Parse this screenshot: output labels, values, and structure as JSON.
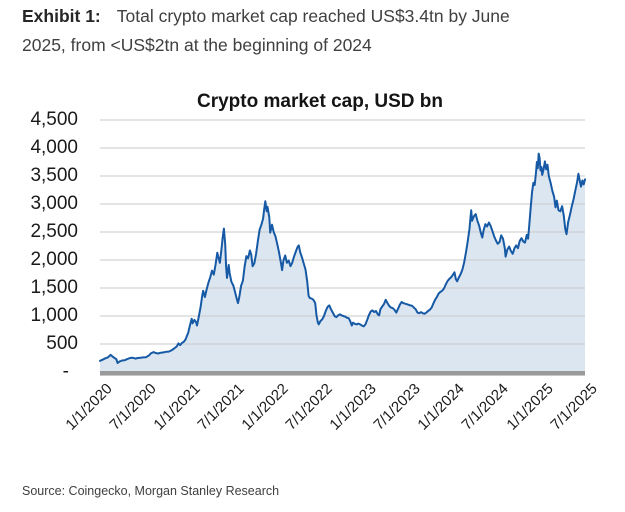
{
  "header": {
    "exhibit_label": "Exhibit 1:",
    "line1": "Total crypto market cap reached US$3.4tn by June",
    "line2": "2025, from <US$2tn at the beginning of 2024"
  },
  "source": "Source: Coingecko, Morgan Stanley Research",
  "chart_data": {
    "type": "area",
    "title": "Crypto market cap, USD bn",
    "xlabel": "",
    "ylabel": "",
    "grid": true,
    "legend": "none",
    "xlim": [
      0,
      5.5
    ],
    "ylim": [
      0,
      4500
    ],
    "x_unit": "years since 1/1/2020",
    "x_ticks": [
      {
        "t": 0.0,
        "label": "1/1/2020"
      },
      {
        "t": 0.5,
        "label": "7/1/2020"
      },
      {
        "t": 1.0,
        "label": "1/1/2021"
      },
      {
        "t": 1.5,
        "label": "7/1/2021"
      },
      {
        "t": 2.0,
        "label": "1/1/2022"
      },
      {
        "t": 2.5,
        "label": "7/1/2022"
      },
      {
        "t": 3.0,
        "label": "1/1/2023"
      },
      {
        "t": 3.5,
        "label": "7/1/2023"
      },
      {
        "t": 4.0,
        "label": "1/1/2024"
      },
      {
        "t": 4.5,
        "label": "7/1/2024"
      },
      {
        "t": 5.0,
        "label": "1/1/2025"
      },
      {
        "t": 5.5,
        "label": "7/1/2025"
      }
    ],
    "y_ticks": [
      {
        "value": 0,
        "label": "-"
      },
      {
        "value": 500,
        "label": "500"
      },
      {
        "value": 1000,
        "label": "1,000"
      },
      {
        "value": 1500,
        "label": "1,500"
      },
      {
        "value": 2000,
        "label": "2,000"
      },
      {
        "value": 2500,
        "label": "2,500"
      },
      {
        "value": 3000,
        "label": "3,000"
      },
      {
        "value": 3500,
        "label": "3,500"
      },
      {
        "value": 4000,
        "label": "4,000"
      },
      {
        "value": 4500,
        "label": "4,500"
      }
    ],
    "colors": {
      "line": "#1659a5",
      "fill": "#dce6f1",
      "gridline": "#c9c9c9",
      "axis_bar": "#9a9a9a",
      "axis_bar_shadow": "#c6c6c6"
    },
    "series": [
      {
        "name": "Total crypto market cap, USD bn",
        "points": [
          [
            0,
            200
          ],
          [
            0.03,
            220
          ],
          [
            0.06,
            245
          ],
          [
            0.09,
            260
          ],
          [
            0.12,
            305
          ],
          [
            0.14,
            280
          ],
          [
            0.16,
            255
          ],
          [
            0.185,
            230
          ],
          [
            0.2,
            160
          ],
          [
            0.22,
            185
          ],
          [
            0.25,
            205
          ],
          [
            0.28,
            210
          ],
          [
            0.31,
            230
          ],
          [
            0.34,
            250
          ],
          [
            0.37,
            255
          ],
          [
            0.4,
            240
          ],
          [
            0.43,
            250
          ],
          [
            0.46,
            255
          ],
          [
            0.49,
            260
          ],
          [
            0.52,
            265
          ],
          [
            0.55,
            290
          ],
          [
            0.58,
            335
          ],
          [
            0.61,
            355
          ],
          [
            0.63,
            340
          ],
          [
            0.66,
            330
          ],
          [
            0.69,
            345
          ],
          [
            0.72,
            350
          ],
          [
            0.75,
            360
          ],
          [
            0.78,
            365
          ],
          [
            0.81,
            385
          ],
          [
            0.84,
            420
          ],
          [
            0.87,
            455
          ],
          [
            0.89,
            510
          ],
          [
            0.91,
            480
          ],
          [
            0.93,
            520
          ],
          [
            0.95,
            540
          ],
          [
            0.97,
            580
          ],
          [
            1,
            700
          ],
          [
            1.02,
            830
          ],
          [
            1.04,
            950
          ],
          [
            1.05,
            870
          ],
          [
            1.07,
            930
          ],
          [
            1.09,
            890
          ],
          [
            1.1,
            830
          ],
          [
            1.12,
            990
          ],
          [
            1.14,
            1150
          ],
          [
            1.16,
            1370
          ],
          [
            1.17,
            1450
          ],
          [
            1.19,
            1340
          ],
          [
            1.21,
            1480
          ],
          [
            1.23,
            1600
          ],
          [
            1.25,
            1690
          ],
          [
            1.27,
            1810
          ],
          [
            1.29,
            1740
          ],
          [
            1.31,
            1910
          ],
          [
            1.33,
            2130
          ],
          [
            1.34,
            2060
          ],
          [
            1.36,
            1950
          ],
          [
            1.38,
            2230
          ],
          [
            1.39,
            2390
          ],
          [
            1.405,
            2560
          ],
          [
            1.42,
            2280
          ],
          [
            1.43,
            1880
          ],
          [
            1.44,
            1680
          ],
          [
            1.46,
            1910
          ],
          [
            1.47,
            1770
          ],
          [
            1.49,
            1610
          ],
          [
            1.51,
            1550
          ],
          [
            1.53,
            1440
          ],
          [
            1.55,
            1310
          ],
          [
            1.565,
            1230
          ],
          [
            1.58,
            1340
          ],
          [
            1.6,
            1540
          ],
          [
            1.62,
            1630
          ],
          [
            1.64,
            1880
          ],
          [
            1.66,
            2070
          ],
          [
            1.68,
            2030
          ],
          [
            1.7,
            2170
          ],
          [
            1.715,
            2100
          ],
          [
            1.73,
            1890
          ],
          [
            1.75,
            1940
          ],
          [
            1.77,
            2110
          ],
          [
            1.79,
            2330
          ],
          [
            1.81,
            2540
          ],
          [
            1.83,
            2630
          ],
          [
            1.85,
            2740
          ],
          [
            1.86,
            2880
          ],
          [
            1.875,
            3050
          ],
          [
            1.89,
            2870
          ],
          [
            1.9,
            2950
          ],
          [
            1.92,
            2760
          ],
          [
            1.93,
            2490
          ],
          [
            1.95,
            2630
          ],
          [
            1.97,
            2500
          ],
          [
            1.99,
            2420
          ],
          [
            2.01,
            2290
          ],
          [
            2.03,
            2140
          ],
          [
            2.05,
            1960
          ],
          [
            2.065,
            1820
          ],
          [
            2.08,
            1990
          ],
          [
            2.1,
            2080
          ],
          [
            2.12,
            1950
          ],
          [
            2.14,
            1990
          ],
          [
            2.16,
            1890
          ],
          [
            2.18,
            1950
          ],
          [
            2.2,
            2060
          ],
          [
            2.22,
            2150
          ],
          [
            2.24,
            2230
          ],
          [
            2.255,
            2260
          ],
          [
            2.27,
            2140
          ],
          [
            2.29,
            2050
          ],
          [
            2.31,
            1940
          ],
          [
            2.33,
            1830
          ],
          [
            2.35,
            1620
          ],
          [
            2.365,
            1360
          ],
          [
            2.38,
            1320
          ],
          [
            2.4,
            1310
          ],
          [
            2.42,
            1290
          ],
          [
            2.44,
            1230
          ],
          [
            2.455,
            1010
          ],
          [
            2.47,
            890
          ],
          [
            2.48,
            850
          ],
          [
            2.5,
            910
          ],
          [
            2.52,
            940
          ],
          [
            2.54,
            1000
          ],
          [
            2.56,
            1090
          ],
          [
            2.58,
            1160
          ],
          [
            2.6,
            1190
          ],
          [
            2.62,
            1120
          ],
          [
            2.64,
            1060
          ],
          [
            2.66,
            1000
          ],
          [
            2.68,
            980
          ],
          [
            2.7,
            1010
          ],
          [
            2.72,
            1030
          ],
          [
            2.74,
            1010
          ],
          [
            2.76,
            1000
          ],
          [
            2.78,
            990
          ],
          [
            2.8,
            970
          ],
          [
            2.82,
            960
          ],
          [
            2.84,
            900
          ],
          [
            2.855,
            830
          ],
          [
            2.87,
            880
          ],
          [
            2.89,
            860
          ],
          [
            2.91,
            850
          ],
          [
            2.93,
            865
          ],
          [
            2.95,
            850
          ],
          [
            2.97,
            830
          ],
          [
            2.99,
            815
          ],
          [
            3.01,
            850
          ],
          [
            3.03,
            930
          ],
          [
            3.05,
            1020
          ],
          [
            3.07,
            1080
          ],
          [
            3.09,
            1100
          ],
          [
            3.11,
            1070
          ],
          [
            3.13,
            1090
          ],
          [
            3.15,
            1030
          ],
          [
            3.165,
            1010
          ],
          [
            3.18,
            1120
          ],
          [
            3.2,
            1170
          ],
          [
            3.22,
            1210
          ],
          [
            3.24,
            1290
          ],
          [
            3.26,
            1230
          ],
          [
            3.28,
            1180
          ],
          [
            3.3,
            1150
          ],
          [
            3.32,
            1140
          ],
          [
            3.34,
            1110
          ],
          [
            3.36,
            1060
          ],
          [
            3.38,
            1130
          ],
          [
            3.4,
            1200
          ],
          [
            3.42,
            1250
          ],
          [
            3.44,
            1230
          ],
          [
            3.46,
            1220
          ],
          [
            3.48,
            1210
          ],
          [
            3.5,
            1200
          ],
          [
            3.52,
            1190
          ],
          [
            3.54,
            1180
          ],
          [
            3.56,
            1150
          ],
          [
            3.58,
            1120
          ],
          [
            3.6,
            1060
          ],
          [
            3.62,
            1050
          ],
          [
            3.64,
            1070
          ],
          [
            3.66,
            1050
          ],
          [
            3.68,
            1040
          ],
          [
            3.7,
            1060
          ],
          [
            3.72,
            1090
          ],
          [
            3.74,
            1110
          ],
          [
            3.76,
            1150
          ],
          [
            3.78,
            1220
          ],
          [
            3.8,
            1290
          ],
          [
            3.82,
            1340
          ],
          [
            3.84,
            1400
          ],
          [
            3.86,
            1430
          ],
          [
            3.88,
            1450
          ],
          [
            3.9,
            1490
          ],
          [
            3.92,
            1560
          ],
          [
            3.94,
            1620
          ],
          [
            3.96,
            1660
          ],
          [
            3.98,
            1690
          ],
          [
            4,
            1730
          ],
          [
            4.02,
            1780
          ],
          [
            4.035,
            1660
          ],
          [
            4.05,
            1620
          ],
          [
            4.07,
            1690
          ],
          [
            4.09,
            1750
          ],
          [
            4.11,
            1830
          ],
          [
            4.13,
            1960
          ],
          [
            4.15,
            2140
          ],
          [
            4.17,
            2330
          ],
          [
            4.19,
            2560
          ],
          [
            4.2,
            2740
          ],
          [
            4.21,
            2890
          ],
          [
            4.22,
            2700
          ],
          [
            4.24,
            2780
          ],
          [
            4.26,
            2820
          ],
          [
            4.28,
            2700
          ],
          [
            4.3,
            2610
          ],
          [
            4.32,
            2480
          ],
          [
            4.335,
            2400
          ],
          [
            4.35,
            2530
          ],
          [
            4.37,
            2640
          ],
          [
            4.39,
            2600
          ],
          [
            4.41,
            2670
          ],
          [
            4.43,
            2610
          ],
          [
            4.45,
            2520
          ],
          [
            4.47,
            2420
          ],
          [
            4.49,
            2350
          ],
          [
            4.51,
            2290
          ],
          [
            4.53,
            2320
          ],
          [
            4.55,
            2440
          ],
          [
            4.57,
            2380
          ],
          [
            4.59,
            2210
          ],
          [
            4.6,
            2060
          ],
          [
            4.62,
            2190
          ],
          [
            4.64,
            2240
          ],
          [
            4.66,
            2160
          ],
          [
            4.68,
            2110
          ],
          [
            4.7,
            2210
          ],
          [
            4.72,
            2260
          ],
          [
            4.74,
            2210
          ],
          [
            4.76,
            2340
          ],
          [
            4.78,
            2390
          ],
          [
            4.8,
            2330
          ],
          [
            4.82,
            2310
          ],
          [
            4.84,
            2450
          ],
          [
            4.855,
            2380
          ],
          [
            4.87,
            2650
          ],
          [
            4.885,
            2960
          ],
          [
            4.9,
            3220
          ],
          [
            4.915,
            3380
          ],
          [
            4.93,
            3340
          ],
          [
            4.945,
            3580
          ],
          [
            4.955,
            3750
          ],
          [
            4.965,
            3640
          ],
          [
            4.975,
            3900
          ],
          [
            4.985,
            3820
          ],
          [
            4.995,
            3600
          ],
          [
            5.005,
            3660
          ],
          [
            5.015,
            3520
          ],
          [
            5.03,
            3620
          ],
          [
            5.045,
            3760
          ],
          [
            5.06,
            3620
          ],
          [
            5.075,
            3700
          ],
          [
            5.09,
            3500
          ],
          [
            5.11,
            3380
          ],
          [
            5.13,
            3230
          ],
          [
            5.15,
            3130
          ],
          [
            5.165,
            2940
          ],
          [
            5.18,
            3060
          ],
          [
            5.2,
            2890
          ],
          [
            5.22,
            2870
          ],
          [
            5.24,
            2960
          ],
          [
            5.26,
            2790
          ],
          [
            5.275,
            2560
          ],
          [
            5.29,
            2460
          ],
          [
            5.31,
            2680
          ],
          [
            5.33,
            2810
          ],
          [
            5.35,
            2960
          ],
          [
            5.37,
            3080
          ],
          [
            5.39,
            3240
          ],
          [
            5.41,
            3390
          ],
          [
            5.425,
            3540
          ],
          [
            5.44,
            3420
          ],
          [
            5.455,
            3310
          ],
          [
            5.47,
            3420
          ],
          [
            5.485,
            3350
          ],
          [
            5.5,
            3440
          ]
        ]
      }
    ]
  }
}
